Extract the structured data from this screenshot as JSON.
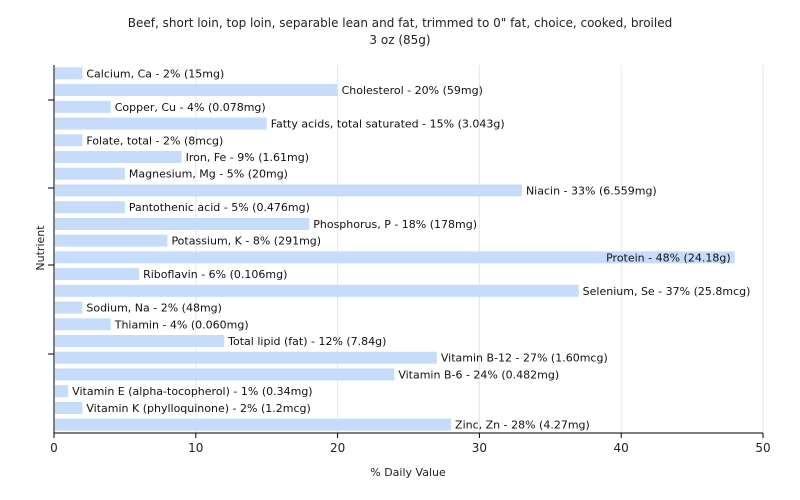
{
  "chart_data": {
    "type": "bar",
    "orientation": "horizontal",
    "title": "Beef, short loin, top loin, separable lean and fat, trimmed to 0\" fat, choice, cooked, broiled",
    "subtitle": "3 oz (85g)",
    "xlabel": "% Daily Value",
    "ylabel": "Nutrient",
    "xlim": [
      0,
      50
    ],
    "xticks": [
      0,
      10,
      20,
      30,
      40,
      50
    ],
    "grid": true,
    "bar_color": "#c6dcfa",
    "categories": [
      "Calcium, Ca",
      "Cholesterol",
      "Copper, Cu",
      "Fatty acids, total saturated",
      "Folate, total",
      "Iron, Fe",
      "Magnesium, Mg",
      "Niacin",
      "Pantothenic acid",
      "Phosphorus, P",
      "Potassium, K",
      "Protein",
      "Riboflavin",
      "Selenium, Se",
      "Sodium, Na",
      "Thiamin",
      "Total lipid (fat)",
      "Vitamin B-12",
      "Vitamin B-6",
      "Vitamin E (alpha-tocopherol)",
      "Vitamin K (phylloquinone)",
      "Zinc, Zn"
    ],
    "values": [
      2,
      20,
      4,
      15,
      2,
      9,
      5,
      33,
      5,
      18,
      8,
      48,
      6,
      37,
      2,
      4,
      12,
      27,
      24,
      1,
      2,
      28
    ],
    "labels": [
      "Calcium, Ca - 2% (15mg)",
      "Cholesterol - 20% (59mg)",
      "Copper, Cu - 4% (0.078mg)",
      "Fatty acids, total saturated - 15% (3.043g)",
      "Folate, total - 2% (8mcg)",
      "Iron, Fe - 9% (1.61mg)",
      "Magnesium, Mg - 5% (20mg)",
      "Niacin - 33% (6.559mg)",
      "Pantothenic acid - 5% (0.476mg)",
      "Phosphorus, P - 18% (178mg)",
      "Potassium, K - 8% (291mg)",
      "Protein - 48% (24.18g)",
      "Riboflavin - 6% (0.106mg)",
      "Selenium, Se - 37% (25.8mcg)",
      "Sodium, Na - 2% (48mg)",
      "Thiamin - 4% (0.060mg)",
      "Total lipid (fat) - 12% (7.84g)",
      "Vitamin B-12 - 27% (1.60mcg)",
      "Vitamin B-6 - 24% (0.482mg)",
      "Vitamin E (alpha-tocopherol) - 1% (0.34mg)",
      "Vitamin K (phylloquinone) - 2% (1.2mcg)",
      "Zinc, Zn - 28% (4.27mg)"
    ]
  }
}
